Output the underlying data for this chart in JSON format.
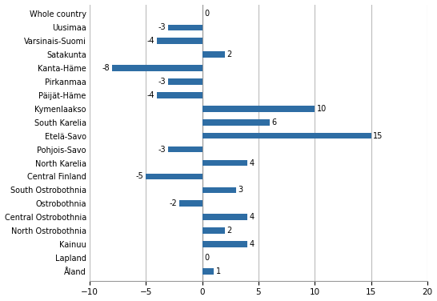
{
  "categories": [
    "Whole country",
    "Uusimaa",
    "Varsinais-Suomi",
    "Satakunta",
    "Kanta-Häme",
    "Pirkanmaa",
    "Päijät-Häme",
    "Kymenlaakso",
    "South Karelia",
    "Etelä-Savo",
    "Pohjois-Savo",
    "North Karelia",
    "Central Finland",
    "South Ostrobothnia",
    "Ostrobothnia",
    "Central Ostrobothnia",
    "North Ostrobothnia",
    "Kainuu",
    "Lapland",
    "Åland"
  ],
  "values": [
    0,
    -3,
    -4,
    2,
    -8,
    -3,
    -4,
    10,
    6,
    15,
    -3,
    4,
    -5,
    3,
    -2,
    4,
    2,
    4,
    0,
    1
  ],
  "bar_color": "#2E6DA4",
  "xlim": [
    -10,
    20
  ],
  "xticks": [
    -10,
    -5,
    0,
    5,
    10,
    15,
    20
  ],
  "figsize": [
    5.46,
    3.76
  ],
  "dpi": 100
}
